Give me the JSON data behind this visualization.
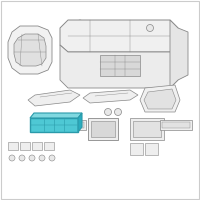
{
  "bg_color": "#ffffff",
  "lc": "#888888",
  "lc_dark": "#555555",
  "lw": 0.55,
  "highlight_fill": "#4ec8d4",
  "highlight_edge": "#2a9aaa",
  "highlight_top": "#80d8e0",
  "highlight_side": "#2aacbe"
}
